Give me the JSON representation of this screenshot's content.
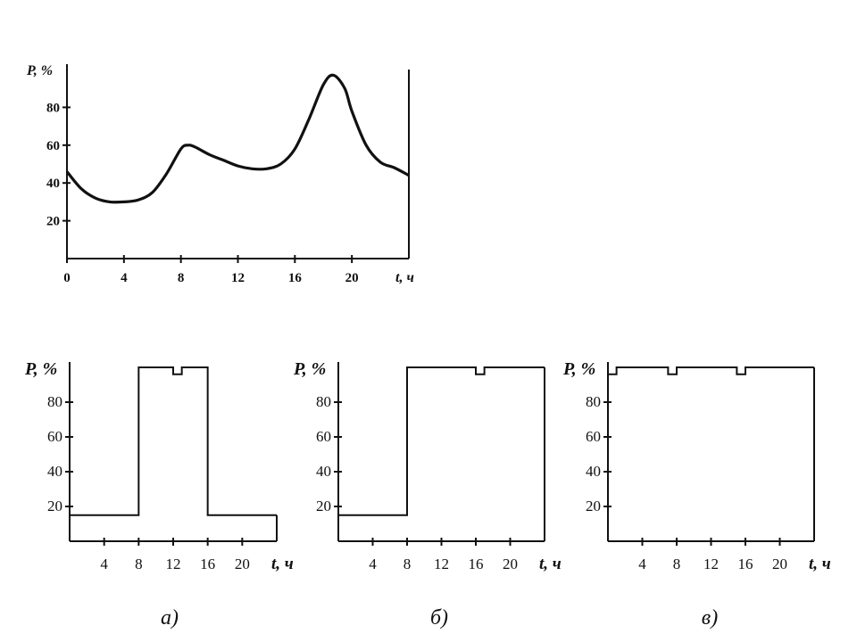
{
  "chart_data": [
    {
      "id": "top",
      "type": "line",
      "ylabel": "P, %",
      "xlabel": "t, ч",
      "xlim": [
        0,
        24
      ],
      "ylim": [
        0,
        100
      ],
      "xticks": [
        "0",
        "4",
        "8",
        "12",
        "16",
        "20"
      ],
      "yticks": [
        "20",
        "40",
        "60",
        "80"
      ],
      "x": [
        0,
        1,
        2,
        3,
        4,
        5,
        6,
        7,
        8,
        8.5,
        9,
        10,
        11,
        12,
        13,
        14,
        15,
        16,
        17,
        18,
        18.7,
        19.5,
        20,
        21,
        22,
        23,
        24
      ],
      "y": [
        46,
        37,
        32,
        30,
        30,
        31,
        35,
        45,
        58,
        60,
        59,
        55,
        52,
        49,
        47.5,
        47.5,
        50,
        58,
        74,
        92,
        97,
        90,
        78,
        60,
        51,
        48,
        44
      ]
    },
    {
      "id": "a",
      "type": "line",
      "caption": "а)",
      "ylabel": "P, %",
      "xlabel": "t, ч",
      "xlim": [
        0,
        24
      ],
      "ylim": [
        0,
        100
      ],
      "xticks": [
        "4",
        "8",
        "12",
        "16",
        "20"
      ],
      "yticks": [
        "20",
        "40",
        "60",
        "80"
      ],
      "x": [
        0,
        8,
        8,
        12,
        12,
        13,
        13,
        16,
        16,
        24
      ],
      "y": [
        15,
        15,
        100,
        100,
        96,
        96,
        100,
        100,
        15,
        15
      ]
    },
    {
      "id": "b",
      "type": "line",
      "caption": "б)",
      "ylabel": "P, %",
      "xlabel": "t, ч",
      "xlim": [
        0,
        24
      ],
      "ylim": [
        0,
        100
      ],
      "xticks": [
        "4",
        "8",
        "12",
        "16",
        "20"
      ],
      "yticks": [
        "20",
        "40",
        "60",
        "80"
      ],
      "x": [
        0,
        8,
        8,
        16,
        16,
        17,
        17,
        24
      ],
      "y": [
        15,
        15,
        100,
        100,
        96,
        96,
        100,
        100
      ]
    },
    {
      "id": "c",
      "type": "line",
      "caption": "в)",
      "ylabel": "P, %",
      "xlabel": "t, ч",
      "xlim": [
        0,
        24
      ],
      "ylim": [
        0,
        100
      ],
      "xticks": [
        "4",
        "8",
        "12",
        "16",
        "20"
      ],
      "yticks": [
        "20",
        "40",
        "60",
        "80"
      ],
      "x": [
        0,
        0,
        1,
        1,
        7,
        7,
        8,
        8,
        15,
        15,
        16,
        16,
        24
      ],
      "y": [
        100,
        96,
        96,
        100,
        100,
        96,
        96,
        100,
        100,
        96,
        96,
        100,
        100
      ]
    }
  ]
}
